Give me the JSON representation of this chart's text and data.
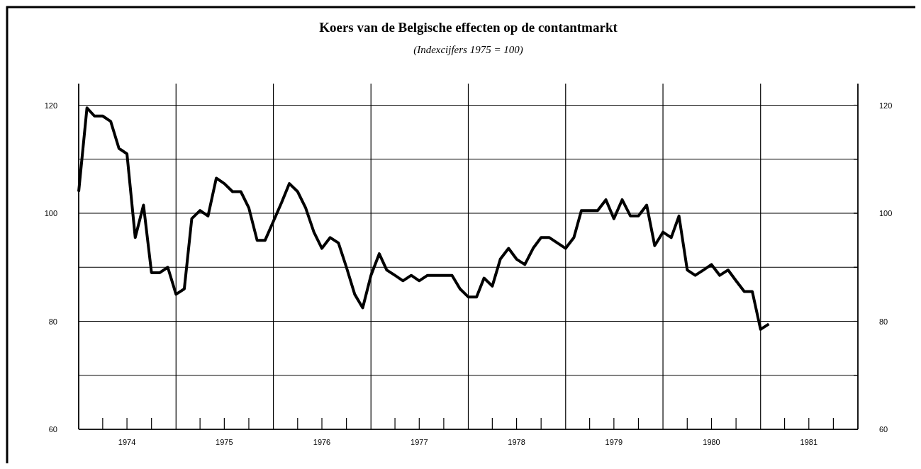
{
  "chart_data": {
    "type": "line",
    "title": "Koers van de Belgische effecten op de contantmarkt",
    "subtitle": "(Indexcijfers 1975 = 100)",
    "x": [
      "1974-01",
      "1974-02",
      "1974-03",
      "1974-04",
      "1974-05",
      "1974-06",
      "1974-07",
      "1974-08",
      "1974-09",
      "1974-10",
      "1974-11",
      "1974-12",
      "1975-01",
      "1975-02",
      "1975-03",
      "1975-04",
      "1975-05",
      "1975-06",
      "1975-07",
      "1975-08",
      "1975-09",
      "1975-10",
      "1975-11",
      "1975-12",
      "1976-01",
      "1976-02",
      "1976-03",
      "1976-04",
      "1976-05",
      "1976-06",
      "1976-07",
      "1976-08",
      "1976-09",
      "1976-10",
      "1976-11",
      "1976-12",
      "1977-01",
      "1977-02",
      "1977-03",
      "1977-04",
      "1977-05",
      "1977-06",
      "1977-07",
      "1977-08",
      "1977-09",
      "1977-10",
      "1977-11",
      "1977-12",
      "1978-01",
      "1978-02",
      "1978-03",
      "1978-04",
      "1978-05",
      "1978-06",
      "1978-07",
      "1978-08",
      "1978-09",
      "1978-10",
      "1978-11",
      "1978-12",
      "1979-01",
      "1979-02",
      "1979-03",
      "1979-04",
      "1979-05",
      "1979-06",
      "1979-07",
      "1979-08",
      "1979-09",
      "1979-10",
      "1979-11",
      "1979-12",
      "1980-01",
      "1980-02",
      "1980-03",
      "1980-04",
      "1980-05",
      "1980-06",
      "1980-07",
      "1980-08",
      "1980-09",
      "1980-10",
      "1980-11",
      "1980-12",
      "1981-01",
      "1981-02"
    ],
    "series": [
      {
        "color": "#000000",
        "values": [
          104,
          119.5,
          118,
          118,
          117,
          112,
          111,
          95.5,
          101.5,
          89,
          89,
          90,
          85,
          86,
          99,
          100.5,
          99.5,
          106.5,
          105.5,
          104,
          104,
          101,
          95,
          95,
          98.5,
          102,
          105.5,
          104,
          101,
          96.5,
          93.5,
          95.5,
          94.5,
          90,
          85,
          82.5,
          88.5,
          92.5,
          89.5,
          88.5,
          87.5,
          88.5,
          87.5,
          88.5,
          88.5,
          88.5,
          88.5,
          86,
          84.5,
          84.5,
          88,
          86.5,
          91.5,
          93.5,
          91.5,
          90.5,
          93.5,
          95.5,
          95.5,
          94.5,
          93.5,
          95.5,
          100.5,
          100.5,
          100.5,
          102.5,
          99,
          102.5,
          99.5,
          99.5,
          101.5,
          94,
          96.5,
          95.5,
          99.5,
          89.5,
          88.5,
          89.5,
          90.5,
          88.5,
          89.5,
          87.5,
          85.5,
          85.5,
          78.5,
          79.5
        ]
      }
    ],
    "xlim": [
      "1974-01",
      "1982-01"
    ],
    "xticks": [
      {
        "value": "1974-01",
        "label": null
      },
      {
        "value": "1974-04",
        "label": null
      },
      {
        "value": "1974-07",
        "label": "1974"
      },
      {
        "value": "1974-10",
        "label": null
      },
      {
        "value": "1975-01",
        "label": null
      },
      {
        "value": "1975-04",
        "label": null
      },
      {
        "value": "1975-07",
        "label": "1975"
      },
      {
        "value": "1975-10",
        "label": null
      },
      {
        "value": "1976-01",
        "label": null
      },
      {
        "value": "1976-04",
        "label": null
      },
      {
        "value": "1976-07",
        "label": "1976"
      },
      {
        "value": "1976-10",
        "label": null
      },
      {
        "value": "1977-01",
        "label": null
      },
      {
        "value": "1977-04",
        "label": null
      },
      {
        "value": "1977-07",
        "label": "1977"
      },
      {
        "value": "1977-10",
        "label": null
      },
      {
        "value": "1978-01",
        "label": null
      },
      {
        "value": "1978-04",
        "label": null
      },
      {
        "value": "1978-07",
        "label": "1978"
      },
      {
        "value": "1978-10",
        "label": null
      },
      {
        "value": "1979-01",
        "label": null
      },
      {
        "value": "1979-04",
        "label": null
      },
      {
        "value": "1979-07",
        "label": "1979"
      },
      {
        "value": "1979-10",
        "label": null
      },
      {
        "value": "1980-01",
        "label": null
      },
      {
        "value": "1980-04",
        "label": null
      },
      {
        "value": "1980-07",
        "label": "1980"
      },
      {
        "value": "1980-10",
        "label": null
      },
      {
        "value": "1981-01",
        "label": null
      },
      {
        "value": "1981-04",
        "label": null
      },
      {
        "value": "1981-07",
        "label": "1981"
      },
      {
        "value": "1981-10",
        "label": null
      },
      {
        "value": "1982-01",
        "label": null
      }
    ],
    "ylim": [
      60,
      124
    ],
    "yticks": [
      60,
      {
        "value": 70,
        "label": null
      },
      80,
      {
        "value": 90,
        "label": null
      },
      100,
      {
        "value": 110,
        "label": null
      },
      120
    ],
    "y2lim": [
      60,
      124
    ],
    "y2ticks": [
      60,
      {
        "value": 70,
        "label": null
      },
      80,
      {
        "value": 90,
        "label": null
      },
      100,
      {
        "value": 110,
        "label": null
      },
      120
    ],
    "grid": true,
    "marker": "none",
    "line_style": "solid"
  }
}
